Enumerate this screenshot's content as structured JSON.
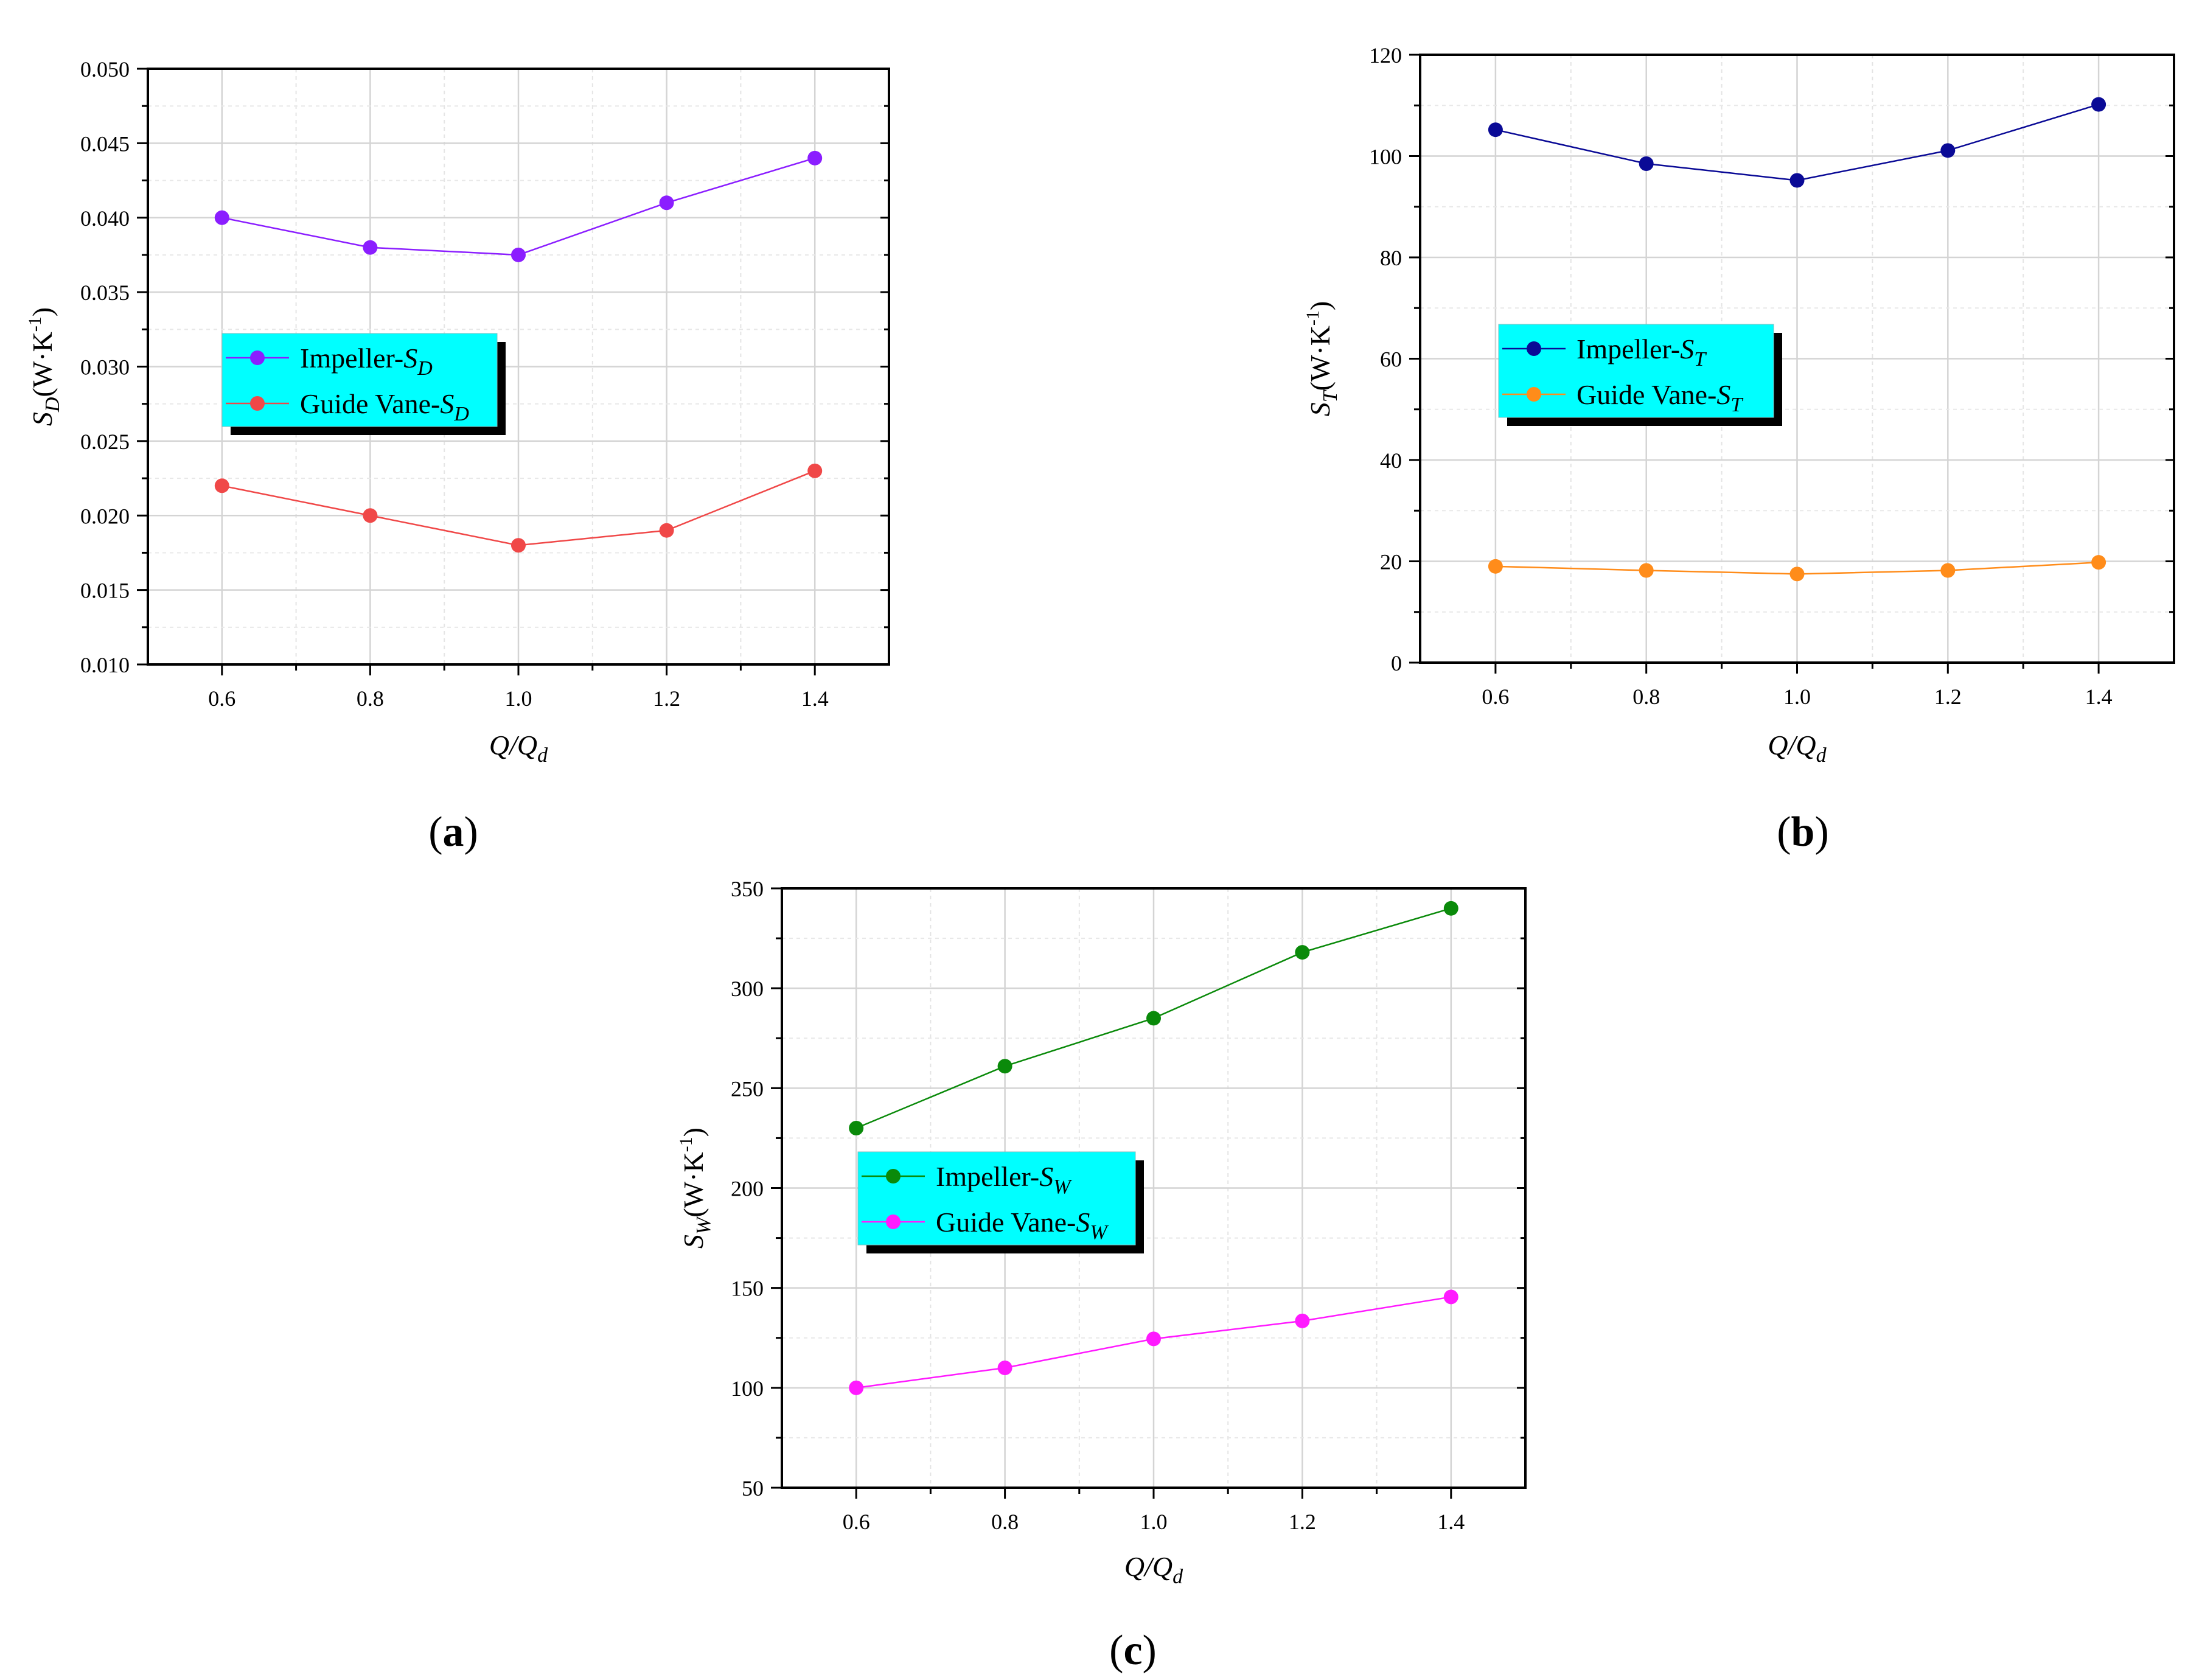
{
  "chart_data": [
    {
      "type": "line",
      "panel_label": "a",
      "x": [
        0.6,
        0.8,
        1.0,
        1.2,
        1.4
      ],
      "xlim": [
        0.5,
        1.5
      ],
      "xticks": [
        "0.6",
        "0.8",
        "1.0",
        "1.2",
        "1.4"
      ],
      "ylim": [
        0.01,
        0.05
      ],
      "yticks": [
        "0.010",
        "0.015",
        "0.020",
        "0.025",
        "0.030",
        "0.035",
        "0.040",
        "0.045",
        "0.050"
      ],
      "xlabel": {
        "base": "Q/Q",
        "sub": "d"
      },
      "ylabel": {
        "base": "S",
        "sub": "D",
        "unit": "(W·K",
        "sup": "-1",
        "close": ")"
      },
      "grid": true,
      "legend_position": "middle-left",
      "series": [
        {
          "name": "Impeller-",
          "sym": "S",
          "sub": "D",
          "color": "#8B1EFF",
          "values": [
            0.04,
            0.038,
            0.0375,
            0.041,
            0.044
          ]
        },
        {
          "name": "Guide Vane-",
          "sym": "S",
          "sub": "D",
          "color": "#F04848",
          "values": [
            0.022,
            0.02,
            0.018,
            0.019,
            0.023
          ]
        }
      ]
    },
    {
      "type": "line",
      "panel_label": "b",
      "x": [
        0.6,
        0.8,
        1.0,
        1.2,
        1.4
      ],
      "xlim": [
        0.5,
        1.5
      ],
      "xticks": [
        "0.6",
        "0.8",
        "1.0",
        "1.2",
        "1.4"
      ],
      "ylim": [
        0,
        120
      ],
      "yticks": [
        "0",
        "20",
        "40",
        "60",
        "80",
        "100",
        "120"
      ],
      "xlabel": {
        "base": "Q/Q",
        "sub": "d"
      },
      "ylabel": {
        "base": "S",
        "sub": "T",
        "unit": "(W·K",
        "sup": "-1",
        "close": ")"
      },
      "grid": true,
      "legend_position": "middle-left",
      "series": [
        {
          "name": "Impeller-",
          "sym": "S",
          "sub": "T",
          "color": "#0A0A96",
          "values": [
            105.2,
            98.5,
            95.2,
            101.1,
            110.2
          ]
        },
        {
          "name": "Guide Vane-",
          "sym": "S",
          "sub": "T",
          "color": "#FF8C1A",
          "values": [
            19.0,
            18.2,
            17.5,
            18.2,
            19.8
          ]
        }
      ]
    },
    {
      "type": "line",
      "panel_label": "c",
      "x": [
        0.6,
        0.8,
        1.0,
        1.2,
        1.4
      ],
      "xlim": [
        0.5,
        1.5
      ],
      "xticks": [
        "0.6",
        "0.8",
        "1.0",
        "1.2",
        "1.4"
      ],
      "ylim": [
        50,
        350
      ],
      "yticks": [
        "50",
        "100",
        "150",
        "200",
        "250",
        "300",
        "350"
      ],
      "xlabel": {
        "base": "Q/Q",
        "sub": "d"
      },
      "ylabel": {
        "base": "S",
        "sub": "W",
        "unit": "(W·K",
        "sup": "-1",
        "close": ")"
      },
      "grid": true,
      "legend_position": "middle-left",
      "series": [
        {
          "name": "Impeller-",
          "sym": "S",
          "sub": "W",
          "color": "#0A8A0A",
          "values": [
            230,
            261,
            285,
            318,
            340
          ]
        },
        {
          "name": "Guide Vane-",
          "sym": "S",
          "sub": "W",
          "color": "#FF1AFF",
          "values": [
            100,
            110,
            124.5,
            133.5,
            145.5
          ]
        }
      ]
    }
  ]
}
